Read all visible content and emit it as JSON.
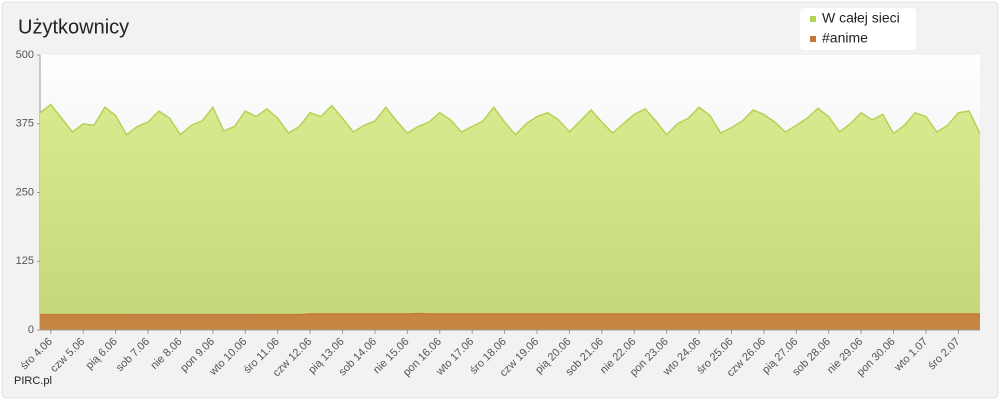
{
  "chart_data": {
    "type": "area",
    "title": "Użytkownicy",
    "credit": "PIRC.pl",
    "categories": [
      null,
      "śro  4.06",
      null,
      null,
      "czw  5.06",
      null,
      null,
      "pią 6.06",
      null,
      null,
      "sob  7.06",
      null,
      null,
      "nie  8.06",
      null,
      null,
      "pon  9.06",
      null,
      null,
      "wto 10.06",
      null,
      null,
      "śro 11.06",
      null,
      null,
      "czw 12.06",
      null,
      null,
      "pią 13.06",
      null,
      null,
      "sob 14.06",
      null,
      null,
      "nie 15.06",
      null,
      null,
      "pon 16.06",
      null,
      null,
      "wto 17.06",
      null,
      null,
      "śro 18.06",
      null,
      null,
      "czw 19.06",
      null,
      null,
      "pią 20.06",
      null,
      null,
      "sob 21.06",
      null,
      null,
      "nie 22.06",
      null,
      null,
      "pon 23.06",
      null,
      null,
      "wto 24.06",
      null,
      null,
      "śro 25.06",
      null,
      null,
      "czw 26.06",
      null,
      null,
      "pią 27.06",
      null,
      null,
      "sob 28.06",
      null,
      null,
      "nie 29.06",
      null,
      null,
      "pon 30.06",
      null,
      null,
      "wto  1.07",
      null,
      null,
      "śro  2.07",
      null,
      null
    ],
    "series": [
      {
        "name": "W całej sieci",
        "color": "#b5d256",
        "values": [
          395,
          410,
          385,
          360,
          375,
          372,
          405,
          390,
          355,
          370,
          378,
          398,
          385,
          355,
          372,
          380,
          405,
          362,
          370,
          398,
          388,
          402,
          385,
          358,
          370,
          395,
          388,
          408,
          385,
          360,
          372,
          380,
          405,
          380,
          358,
          370,
          378,
          395,
          382,
          360,
          370,
          380,
          405,
          378,
          355,
          375,
          388,
          395,
          382,
          360,
          380,
          400,
          378,
          358,
          375,
          392,
          402,
          380,
          355,
          375,
          385,
          405,
          390,
          358,
          368,
          380,
          400,
          392,
          378,
          360,
          372,
          385,
          403,
          388,
          360,
          375,
          395,
          382,
          392,
          357,
          372,
          395,
          388,
          360,
          372,
          395,
          398,
          357
        ]
      },
      {
        "name": "#anime",
        "color": "#c8773a",
        "values": [
          28,
          28,
          28,
          28,
          28,
          28,
          28,
          28,
          28,
          28,
          28,
          28,
          28,
          28,
          28,
          28,
          28,
          28,
          28,
          28,
          28,
          28,
          28,
          28,
          28,
          29,
          29,
          29,
          29,
          29,
          29,
          29,
          29,
          29,
          29,
          30,
          29,
          29,
          29,
          29,
          29,
          29,
          29,
          29,
          29,
          29,
          29,
          29,
          29,
          29,
          29,
          29,
          29,
          29,
          29,
          29,
          29,
          29,
          29,
          29,
          29,
          29,
          29,
          29,
          29,
          29,
          29,
          29,
          29,
          29,
          29,
          29,
          29,
          29,
          29,
          29,
          29,
          29,
          29,
          29,
          29,
          29,
          29,
          29,
          29,
          29,
          29,
          29
        ]
      }
    ],
    "ylim": [
      0,
      500
    ],
    "yticks": [
      0,
      125,
      250,
      375,
      500
    ],
    "grid": false
  }
}
